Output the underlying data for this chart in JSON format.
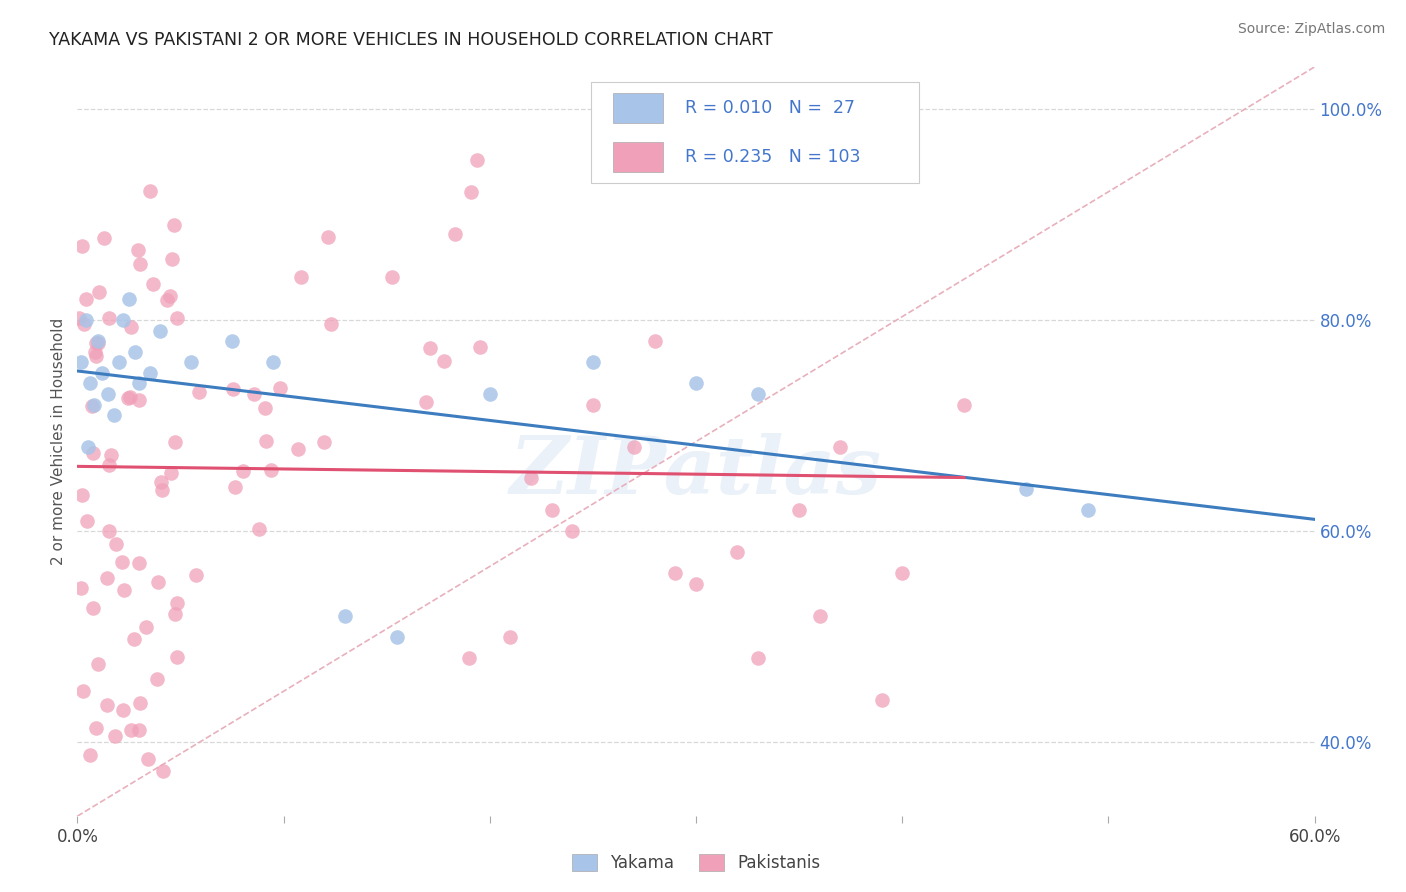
{
  "title": "YAKAMA VS PAKISTANI 2 OR MORE VEHICLES IN HOUSEHOLD CORRELATION CHART",
  "source": "Source: ZipAtlas.com",
  "ylabel": "2 or more Vehicles in Household",
  "xlim": [
    0.0,
    0.6
  ],
  "ylim": [
    0.33,
    1.04
  ],
  "x_ticks": [
    0.0,
    0.1,
    0.2,
    0.3,
    0.4,
    0.5,
    0.6
  ],
  "x_tick_labels": [
    "0.0%",
    "",
    "",
    "",
    "",
    "",
    "60.0%"
  ],
  "y_tick_right": [
    0.4,
    0.6,
    0.8,
    1.0
  ],
  "y_tick_right_labels": [
    "40.0%",
    "60.0%",
    "80.0%",
    "100.0%"
  ],
  "yakama_R": "0.010",
  "yakama_N": "27",
  "pakistani_R": "0.235",
  "pakistani_N": "103",
  "yakama_color": "#a8c4e8",
  "pakistani_color": "#f0a0b8",
  "yakama_line_color": "#3d7dbf",
  "pakistani_line_color": "#e05070",
  "diag_line_color": "#e8b0bc",
  "legend_text_color": "#4477cc",
  "bg_color": "#ffffff",
  "watermark": "ZIPatlas",
  "grid_color": "#d8d8d8",
  "grid_style": "--"
}
